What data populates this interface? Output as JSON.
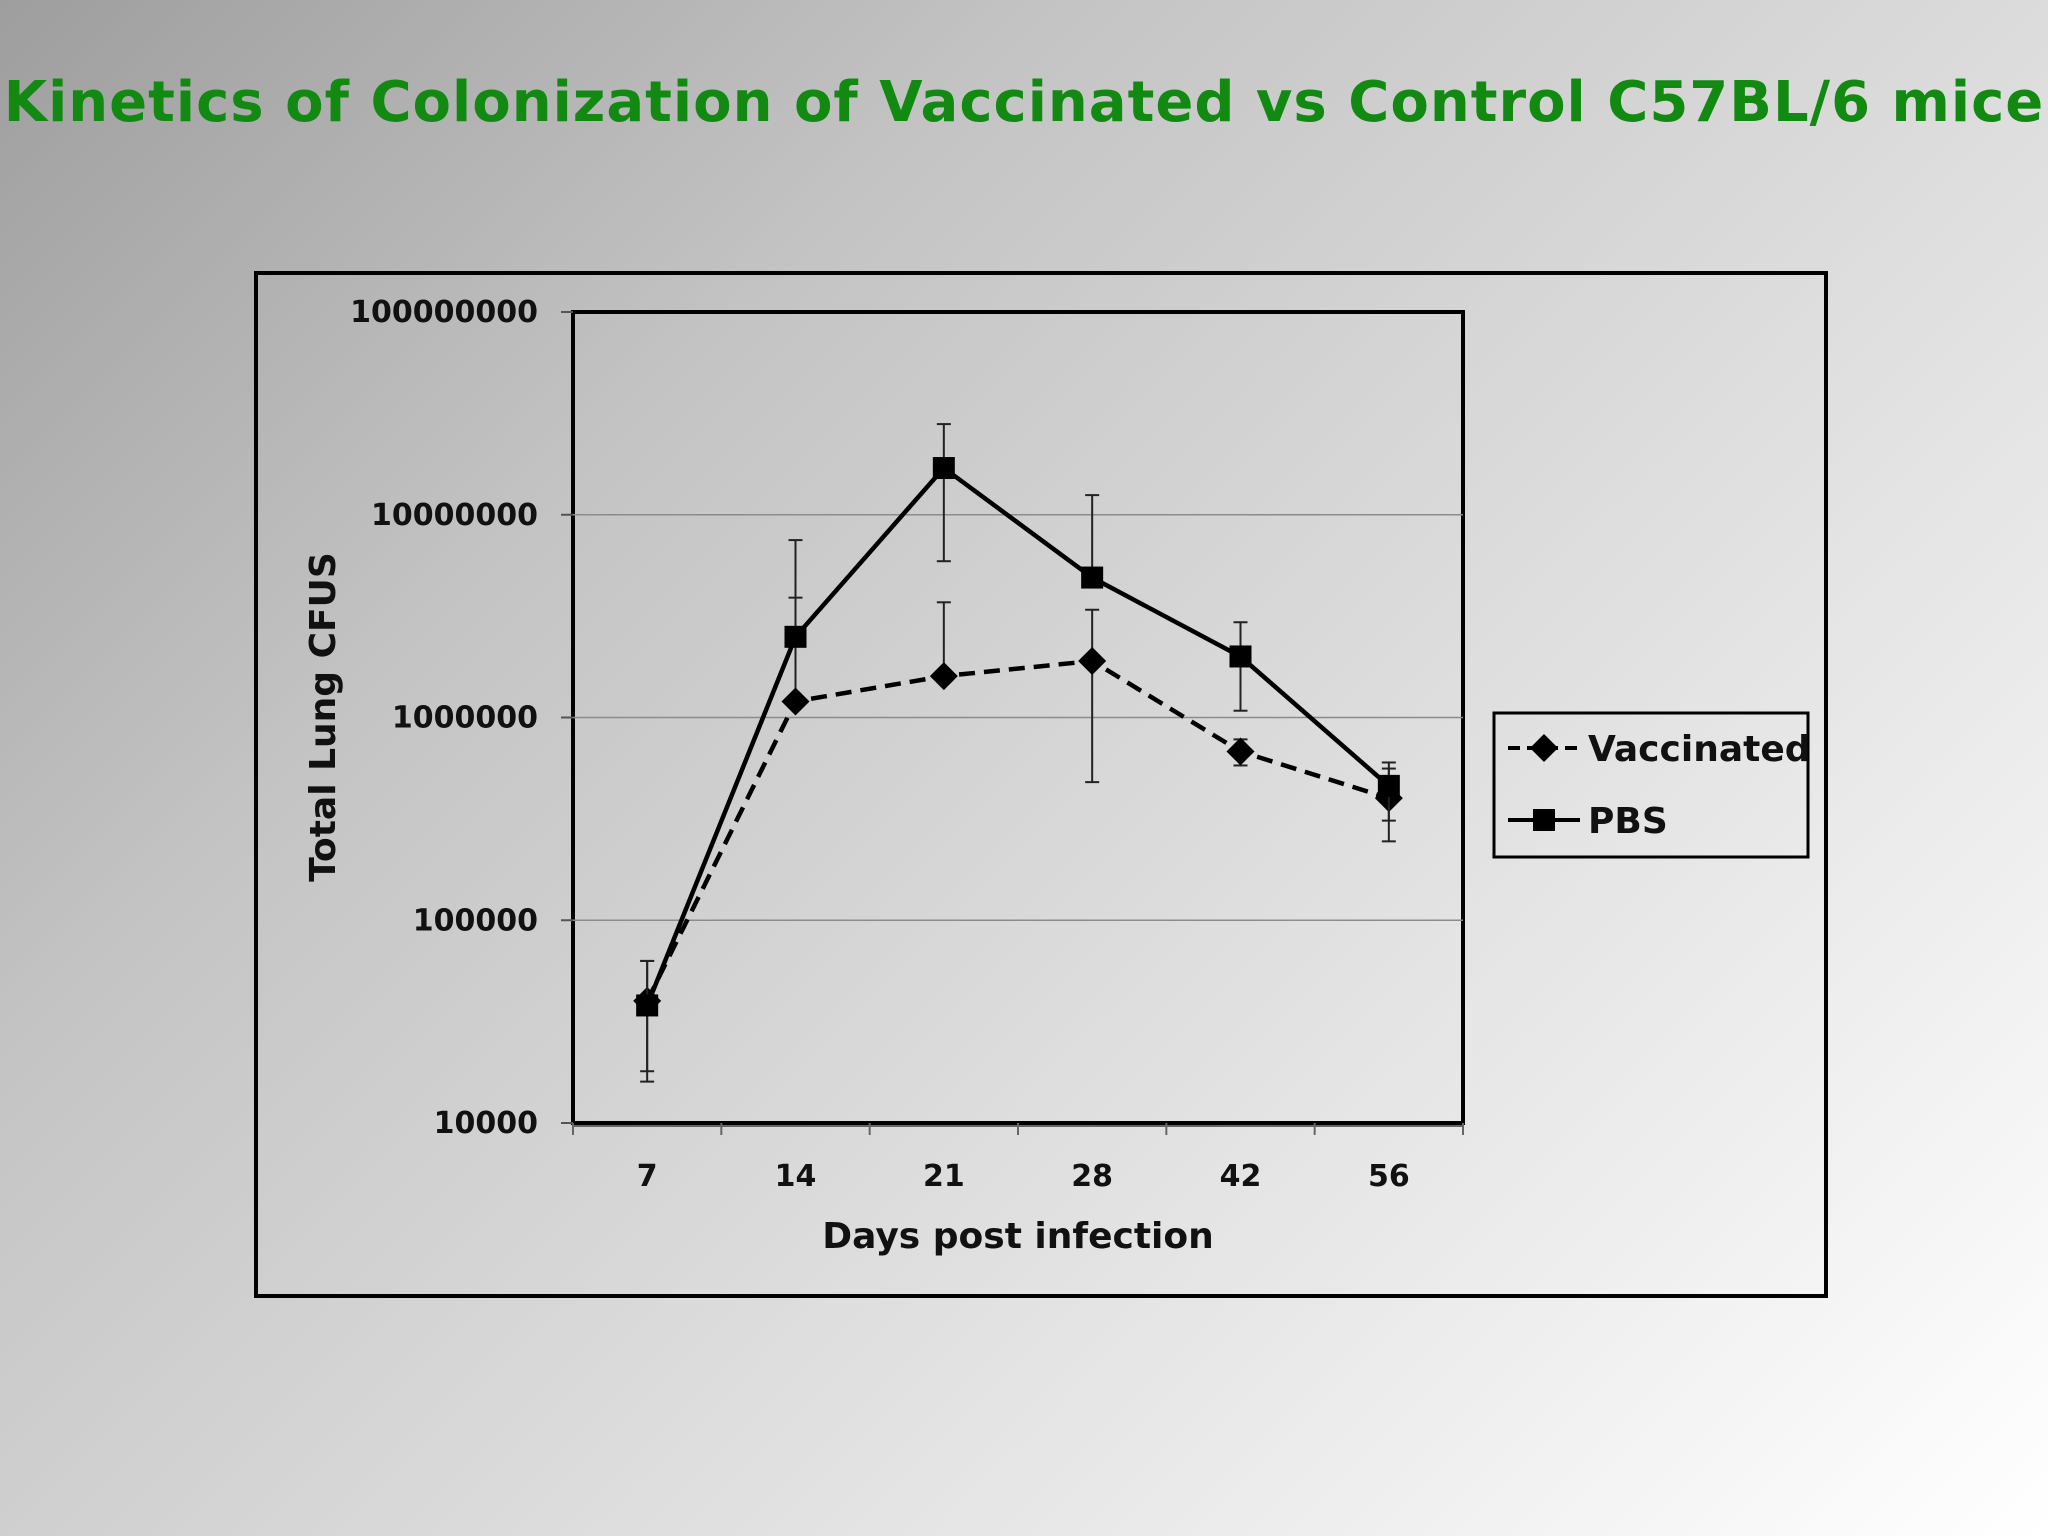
{
  "slide": {
    "title": "Kinetics of Colonization of Vaccinated vs Control C57BL/6 mice"
  },
  "chart_data": {
    "type": "line",
    "title": "",
    "xlabel": "Days post infection",
    "ylabel": "Total Lung CFUS",
    "y_scale": "log",
    "ylim": [
      10000,
      100000000
    ],
    "yticks": [
      "10000",
      "100000",
      "1000000",
      "10000000",
      "100000000"
    ],
    "ytick_values": [
      10000,
      100000,
      1000000,
      10000000,
      100000000
    ],
    "categories": [
      "7",
      "14",
      "21",
      "28",
      "42",
      "56"
    ],
    "grid": "horizontal",
    "legend_position": "right",
    "series": [
      {
        "name": "Vaccinated",
        "line_style": "dashed",
        "marker": "diamond",
        "color": "#000000",
        "values": [
          40000,
          1200000,
          1600000,
          1900000,
          680000,
          400000
        ],
        "err_high": [
          63000,
          3900000,
          3700000,
          3400000,
          780000,
          560000
        ],
        "err_low": [
          18000,
          1200000,
          1600000,
          480000,
          580000,
          245000
        ]
      },
      {
        "name": "PBS",
        "line_style": "solid",
        "marker": "square",
        "color": "#000000",
        "values": [
          38000,
          2500000,
          17000000,
          4900000,
          2000000,
          460000
        ],
        "err_high": [
          63000,
          7500000,
          28000000,
          12500000,
          2950000,
          600000
        ],
        "err_low": [
          16000,
          2500000,
          5900000,
          4900000,
          1080000,
          310000
        ]
      }
    ]
  }
}
